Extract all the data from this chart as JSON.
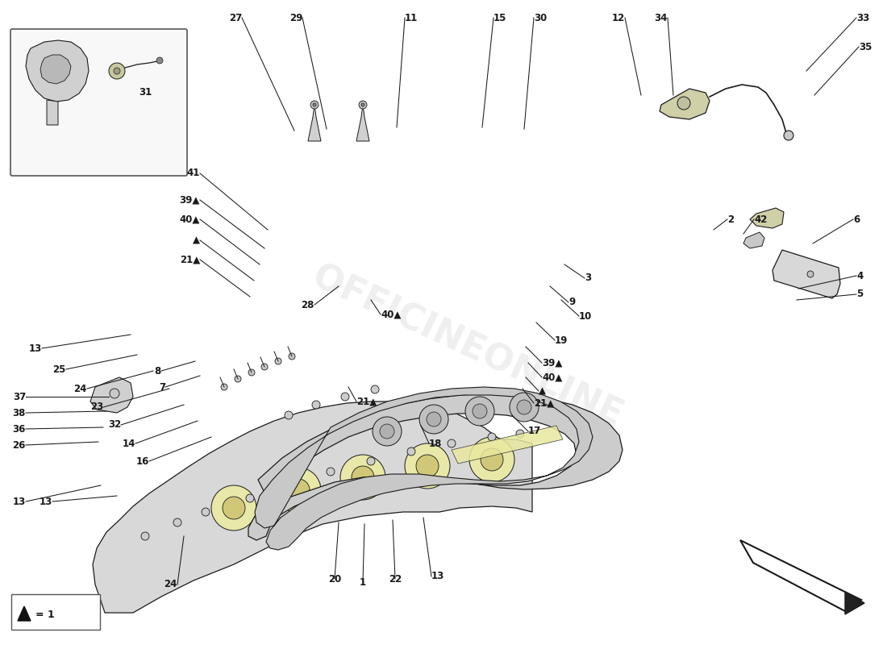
{
  "background_color": "#ffffff",
  "figure_size": [
    11.0,
    8.0
  ],
  "dpi": 100,
  "watermark_text": "OFFICINEONLINE",
  "line_color": "#1a1a1a",
  "text_color": "#1a1a1a",
  "highlight_color": "#e8e8a0",
  "part_labels": [
    [
      "27",
      300,
      22,
      350,
      190
    ],
    [
      "29",
      370,
      22,
      405,
      185
    ],
    [
      "11",
      500,
      22,
      490,
      175
    ],
    [
      "15",
      610,
      22,
      595,
      170
    ],
    [
      "30",
      660,
      22,
      645,
      165
    ],
    [
      "12",
      770,
      22,
      785,
      130
    ],
    [
      "34",
      825,
      22,
      830,
      125
    ],
    [
      "33",
      1060,
      22,
      1000,
      95
    ],
    [
      "35",
      1065,
      60,
      1010,
      120
    ],
    [
      "41",
      253,
      215,
      335,
      290
    ],
    [
      "39",
      248,
      248,
      330,
      310
    ],
    [
      "40",
      248,
      273,
      325,
      325
    ],
    [
      "▲",
      248,
      298,
      318,
      340
    ],
    [
      "21",
      248,
      323,
      315,
      355
    ],
    [
      "28",
      385,
      380,
      410,
      355
    ],
    [
      "40",
      470,
      385,
      455,
      368
    ],
    [
      "3",
      720,
      345,
      695,
      330
    ],
    [
      "9",
      700,
      375,
      680,
      358
    ],
    [
      "10",
      715,
      390,
      695,
      372
    ],
    [
      "19",
      685,
      420,
      665,
      400
    ],
    [
      "39",
      672,
      445,
      652,
      428
    ],
    [
      "40",
      672,
      462,
      655,
      445
    ],
    [
      "▲",
      668,
      478,
      652,
      462
    ],
    [
      "21",
      665,
      495,
      648,
      478
    ],
    [
      "17",
      660,
      535,
      640,
      515
    ],
    [
      "13",
      55,
      430,
      155,
      415
    ],
    [
      "25",
      85,
      455,
      168,
      440
    ],
    [
      "24",
      110,
      478,
      185,
      460
    ],
    [
      "23",
      130,
      500,
      205,
      480
    ],
    [
      "32",
      150,
      522,
      222,
      500
    ],
    [
      "14",
      168,
      545,
      240,
      520
    ],
    [
      "16",
      185,
      567,
      258,
      540
    ],
    [
      "37",
      35,
      490,
      130,
      492
    ],
    [
      "38",
      35,
      510,
      128,
      510
    ],
    [
      "36",
      35,
      530,
      125,
      528
    ],
    [
      "26",
      35,
      550,
      120,
      547
    ],
    [
      "13",
      35,
      620,
      120,
      600
    ],
    [
      "8",
      200,
      458,
      238,
      448
    ],
    [
      "7",
      205,
      478,
      245,
      465
    ],
    [
      "20",
      410,
      710,
      418,
      648
    ],
    [
      "1",
      448,
      715,
      450,
      650
    ],
    [
      "22",
      490,
      712,
      488,
      645
    ],
    [
      "13",
      535,
      708,
      525,
      642
    ],
    [
      "24",
      220,
      720,
      225,
      660
    ],
    [
      "21",
      440,
      498,
      430,
      478
    ],
    [
      "18",
      530,
      548,
      520,
      525
    ],
    [
      "2",
      900,
      268,
      880,
      285
    ],
    [
      "42",
      930,
      272,
      920,
      290
    ],
    [
      "6",
      1055,
      268,
      1008,
      300
    ],
    [
      "4",
      1062,
      340,
      985,
      355
    ],
    [
      "5",
      1062,
      362,
      983,
      372
    ],
    [
      "31",
      170,
      115,
      148,
      140
    ],
    [
      "13",
      65,
      620,
      142,
      615
    ]
  ]
}
